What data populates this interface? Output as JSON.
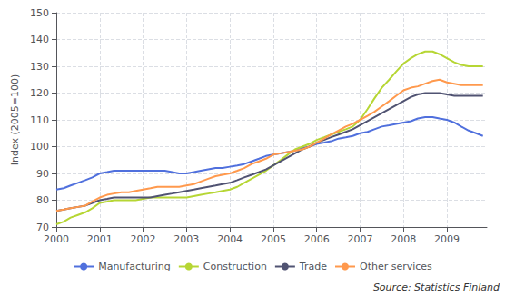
{
  "chart_data": {
    "type": "line",
    "y_label": "Index (2005=100)",
    "annotations": [
      "Source: Statistics Finland"
    ],
    "xlim": [
      2000,
      2009.92
    ],
    "ylim": [
      70,
      150
    ],
    "xticks": [
      2000,
      2001,
      2002,
      2003,
      2004,
      2005,
      2006,
      2007,
      2008,
      2009
    ],
    "yticks": [
      70,
      80,
      90,
      100,
      110,
      120,
      130,
      140,
      150
    ],
    "grid": true,
    "legend": "bottom",
    "x": [
      2000.0,
      2000.17,
      2000.33,
      2000.5,
      2000.67,
      2000.83,
      2001.0,
      2001.17,
      2001.33,
      2001.5,
      2001.67,
      2001.83,
      2002.0,
      2002.17,
      2002.33,
      2002.5,
      2002.67,
      2002.83,
      2003.0,
      2003.17,
      2003.33,
      2003.5,
      2003.67,
      2003.83,
      2004.0,
      2004.17,
      2004.33,
      2004.5,
      2004.67,
      2004.83,
      2005.0,
      2005.17,
      2005.33,
      2005.5,
      2005.67,
      2005.83,
      2006.0,
      2006.17,
      2006.33,
      2006.5,
      2006.67,
      2006.83,
      2007.0,
      2007.17,
      2007.33,
      2007.5,
      2007.67,
      2007.83,
      2008.0,
      2008.17,
      2008.33,
      2008.5,
      2008.67,
      2008.83,
      2009.0,
      2009.17,
      2009.33,
      2009.5,
      2009.67,
      2009.83
    ],
    "series": [
      {
        "name": "Manufacturing",
        "values": [
          84.0,
          84.5,
          85.5,
          86.5,
          87.5,
          88.5,
          90.0,
          90.5,
          91.0,
          91.0,
          91.0,
          91.0,
          91.0,
          91.0,
          91.0,
          91.0,
          90.5,
          90.0,
          90.0,
          90.5,
          91.0,
          91.5,
          92.0,
          92.0,
          92.5,
          93.0,
          93.5,
          94.5,
          95.5,
          96.5,
          97.0,
          97.5,
          98.0,
          98.5,
          99.5,
          100.0,
          101.0,
          101.5,
          102.0,
          103.0,
          103.5,
          104.0,
          105.0,
          105.5,
          106.5,
          107.5,
          108.0,
          108.5,
          109.0,
          109.5,
          110.5,
          111.0,
          111.0,
          110.5,
          110.0,
          109.0,
          107.5,
          106.0,
          105.0,
          104.0
        ]
      },
      {
        "name": "Construction",
        "values": [
          71.0,
          72.0,
          73.5,
          74.5,
          75.5,
          77.0,
          79.0,
          79.5,
          80.0,
          80.0,
          80.0,
          80.0,
          80.5,
          81.0,
          81.0,
          81.0,
          81.0,
          81.0,
          81.0,
          81.5,
          82.0,
          82.5,
          83.0,
          83.5,
          84.0,
          85.0,
          86.5,
          88.0,
          89.5,
          91.0,
          93.0,
          95.0,
          97.0,
          99.0,
          100.0,
          101.0,
          102.5,
          103.5,
          104.5,
          105.5,
          106.5,
          107.5,
          110.0,
          114.0,
          118.0,
          122.0,
          125.0,
          128.0,
          131.0,
          133.0,
          134.5,
          135.5,
          135.5,
          134.5,
          133.0,
          131.5,
          130.5,
          130.0,
          130.0,
          130.0
        ]
      },
      {
        "name": "Trade",
        "values": [
          76.0,
          76.5,
          77.0,
          77.5,
          78.0,
          79.0,
          80.0,
          80.5,
          81.0,
          81.0,
          81.0,
          81.0,
          81.0,
          81.0,
          81.5,
          82.0,
          82.5,
          83.0,
          83.5,
          84.0,
          84.5,
          85.0,
          85.5,
          86.0,
          86.5,
          87.5,
          88.5,
          89.5,
          90.5,
          91.5,
          93.0,
          94.5,
          96.0,
          97.5,
          99.0,
          100.0,
          101.5,
          102.5,
          103.5,
          104.5,
          105.5,
          106.5,
          108.0,
          109.5,
          111.0,
          112.5,
          114.0,
          115.5,
          117.0,
          118.5,
          119.5,
          120.0,
          120.0,
          120.0,
          119.5,
          119.0,
          119.0,
          119.0,
          119.0,
          119.0
        ]
      },
      {
        "name": "Other services",
        "values": [
          76.0,
          76.5,
          77.0,
          77.5,
          78.0,
          79.5,
          81.0,
          82.0,
          82.5,
          83.0,
          83.0,
          83.5,
          84.0,
          84.5,
          85.0,
          85.0,
          85.0,
          85.0,
          85.5,
          86.0,
          87.0,
          88.0,
          89.0,
          89.5,
          90.0,
          91.0,
          92.0,
          93.5,
          94.5,
          95.5,
          97.0,
          97.5,
          98.0,
          98.5,
          99.0,
          100.0,
          101.5,
          103.0,
          104.5,
          106.0,
          107.5,
          108.5,
          110.0,
          111.5,
          113.0,
          115.0,
          117.0,
          119.0,
          121.0,
          122.0,
          122.5,
          123.5,
          124.5,
          125.0,
          124.0,
          123.5,
          123.0,
          123.0,
          123.0,
          123.0
        ]
      }
    ]
  }
}
